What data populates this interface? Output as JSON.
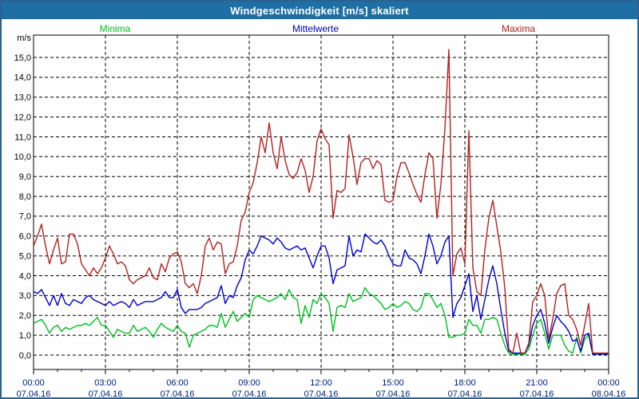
{
  "window": {
    "title": "Windgeschwindigkeit [m/s] skaliert"
  },
  "colors": {
    "titlebar_bg": "#1E6FA6",
    "window_border": "#2B618F",
    "plot_border": "#000000",
    "grid": "#000000",
    "y_label_color": "#000000",
    "axis_text": "#002080",
    "minima_green": "#00C020",
    "mittelwerte_blue": "#0000CD",
    "maxima_red": "#B22222"
  },
  "chart_data": {
    "type": "line",
    "title": "Windgeschwindigkeit [m/s] skaliert",
    "xlabel": "",
    "ylabel": "m/s",
    "ylim": [
      0,
      15
    ],
    "y_tick_step": 1.0,
    "grid": "dashed",
    "legend_position": "top",
    "sample_interval_minutes": 10,
    "x_start": "00:00 07.04.16",
    "x_end": "00:00 08.04.16",
    "y_tick_labels": [
      "0,0",
      "1,0",
      "2,0",
      "3,0",
      "4,0",
      "5,0",
      "6,0",
      "7,0",
      "8,0",
      "9,0",
      "10,0",
      "11,0",
      "12,0",
      "13,0",
      "14,0",
      "15,0"
    ],
    "x_ticks": [
      {
        "time": "00:00",
        "date": "07.04.16"
      },
      {
        "time": "03:00",
        "date": "07.04.16"
      },
      {
        "time": "06:00",
        "date": "07.04.16"
      },
      {
        "time": "09:00",
        "date": "07.04.16"
      },
      {
        "time": "12:00",
        "date": "07.04.16"
      },
      {
        "time": "15:00",
        "date": "07.04.16"
      },
      {
        "time": "18:00",
        "date": "07.04.16"
      },
      {
        "time": "21:00",
        "date": "07.04.16"
      },
      {
        "time": "00:00",
        "date": "08.04.16"
      }
    ],
    "series": [
      {
        "name": "Minima",
        "color": "#00C020",
        "values": [
          1.6,
          1.7,
          1.8,
          1.5,
          1.1,
          1.4,
          1.5,
          1.2,
          1.4,
          1.3,
          1.4,
          1.5,
          1.5,
          1.6,
          1.5,
          1.7,
          1.9,
          1.5,
          1.5,
          1.2,
          0.9,
          1.3,
          1.2,
          1.1,
          1.1,
          1.5,
          1.2,
          1.3,
          1.4,
          1.2,
          0.9,
          1.3,
          1.6,
          1.4,
          1.3,
          1.2,
          1.5,
          1.2,
          1.1,
          0.4,
          1.0,
          1.1,
          1.2,
          1.3,
          1.5,
          1.5,
          1.4,
          2.1,
          1.4,
          1.8,
          2.2,
          1.7,
          1.9,
          2.1,
          1.9,
          2.8,
          3.0,
          2.9,
          2.8,
          2.7,
          2.8,
          2.9,
          3.1,
          2.8,
          3.3,
          2.9,
          2.8,
          1.6,
          2.5,
          1.9,
          2.8,
          2.6,
          3.1,
          2.9,
          2.6,
          1.2,
          2.4,
          2.5,
          2.4,
          3.1,
          2.7,
          2.8,
          2.9,
          3.4,
          3.1,
          3.0,
          2.8,
          2.6,
          2.3,
          2.4,
          2.6,
          2.4,
          2.5,
          2.7,
          2.6,
          2.3,
          2.2,
          2.4,
          3.1,
          3.1,
          2.8,
          2.4,
          2.6,
          2.0,
          0.9,
          0.9,
          1.0,
          1.0,
          1.1,
          1.8,
          1.5,
          1.5,
          1.1,
          1.8,
          1.8,
          1.9,
          1.8,
          1.1,
          0.5,
          0.1,
          0.05,
          0.05,
          0.05,
          0.05,
          0.3,
          1.0,
          1.6,
          1.8,
          1.1,
          0.3,
          1.0,
          1.0,
          1.0,
          0.5,
          0.2,
          0.1,
          0.9,
          0.1,
          0.8,
          1.0,
          0.05,
          0.05,
          0.05,
          0.05,
          0.05
        ]
      },
      {
        "name": "Mittelwerte",
        "color": "#0000CD",
        "values": [
          3.2,
          3.1,
          3.3,
          2.9,
          2.5,
          3.0,
          2.5,
          3.1,
          2.6,
          2.5,
          2.8,
          2.7,
          2.6,
          2.9,
          3.0,
          2.8,
          2.7,
          2.6,
          2.5,
          2.7,
          2.5,
          2.6,
          2.7,
          2.6,
          2.4,
          2.8,
          2.5,
          2.6,
          2.7,
          2.7,
          2.7,
          2.8,
          2.9,
          3.2,
          2.9,
          2.9,
          3.3,
          2.4,
          2.1,
          2.3,
          2.3,
          2.3,
          2.4,
          2.6,
          2.7,
          2.8,
          2.9,
          3.5,
          2.6,
          3.0,
          2.9,
          3.5,
          3.9,
          4.8,
          5.3,
          5.1,
          5.5,
          6.0,
          5.9,
          5.8,
          5.6,
          5.9,
          5.7,
          5.4,
          5.3,
          5.4,
          5.5,
          5.3,
          5.4,
          4.9,
          4.4,
          5.0,
          5.5,
          5.5,
          4.9,
          3.6,
          4.3,
          4.4,
          4.5,
          6.0,
          5.0,
          5.3,
          5.2,
          6.1,
          5.9,
          5.7,
          5.6,
          5.8,
          5.5,
          5.0,
          4.6,
          4.5,
          4.5,
          5.3,
          4.9,
          4.8,
          4.6,
          4.1,
          5.0,
          6.1,
          5.5,
          4.6,
          5.0,
          5.7,
          6.0,
          1.9,
          2.6,
          2.9,
          3.5,
          4.1,
          2.2,
          3.0,
          1.8,
          2.8,
          3.8,
          4.5,
          3.6,
          2.3,
          1.1,
          0.2,
          0.1,
          0.1,
          0.1,
          0.1,
          0.5,
          1.5,
          2.0,
          2.3,
          1.6,
          0.6,
          1.4,
          2.0,
          1.7,
          1.5,
          1.2,
          0.7,
          0.8,
          0.2,
          1.0,
          1.1,
          0.05,
          0.05,
          0.05,
          0.05,
          0.05
        ]
      },
      {
        "name": "Maxima",
        "color": "#B22222",
        "values": [
          5.5,
          6.0,
          6.6,
          5.5,
          4.6,
          5.3,
          5.9,
          4.6,
          4.7,
          6.1,
          6.1,
          5.6,
          4.6,
          4.3,
          4.0,
          4.4,
          4.1,
          4.4,
          4.9,
          5.5,
          5.1,
          4.6,
          4.7,
          4.5,
          3.8,
          3.6,
          3.8,
          3.9,
          4.0,
          4.4,
          3.9,
          3.8,
          4.6,
          4.2,
          4.9,
          5.1,
          5.2,
          4.7,
          3.6,
          3.4,
          3.6,
          3.1,
          4.0,
          5.5,
          5.9,
          5.3,
          5.7,
          5.6,
          4.1,
          4.6,
          4.7,
          5.5,
          6.8,
          7.2,
          8.2,
          8.7,
          9.7,
          11.0,
          10.2,
          11.7,
          10.2,
          9.4,
          11.0,
          9.8,
          9.1,
          8.9,
          9.2,
          9.9,
          9.3,
          8.2,
          9.0,
          10.8,
          11.4,
          10.9,
          10.6,
          6.9,
          8.3,
          8.2,
          8.4,
          11.1,
          10.0,
          8.6,
          9.7,
          9.9,
          9.9,
          9.4,
          9.8,
          9.6,
          7.8,
          7.7,
          7.8,
          9.0,
          9.7,
          9.7,
          9.2,
          8.6,
          8.1,
          7.7,
          9.1,
          10.2,
          9.9,
          6.9,
          8.6,
          11.4,
          15.4,
          4.0,
          5.1,
          5.4,
          4.6,
          11.3,
          4.4,
          3.2,
          3.0,
          5.3,
          6.9,
          7.8,
          6.5,
          5.2,
          3.4,
          0.3,
          0.1,
          1.1,
          0.1,
          0.1,
          0.6,
          2.7,
          3.0,
          3.6,
          3.0,
          0.8,
          1.8,
          3.1,
          3.5,
          3.6,
          2.0,
          1.8,
          1.3,
          0.5,
          1.5,
          2.6,
          0.1,
          0.1,
          0.1,
          0.1,
          0.1
        ]
      }
    ]
  }
}
